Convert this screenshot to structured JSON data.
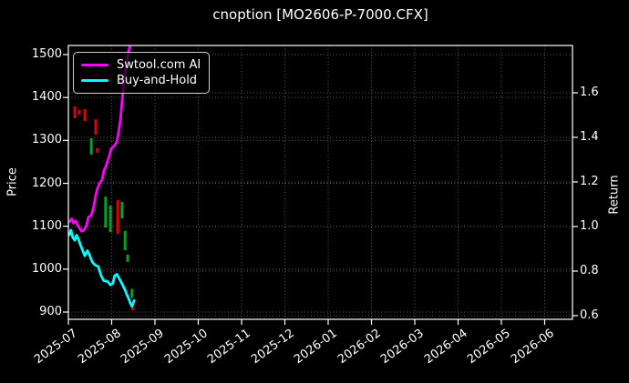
{
  "window": {
    "background": "#000000"
  },
  "chart_data": {
    "type": "mixed_line_candlestick",
    "title": "cnoption [MO2606-P-7000.CFX]",
    "ylabel_left": "Price",
    "ylabel_right": "Return",
    "x_unit": "fractional months from 2025-07",
    "x_ticks": [
      "2025-07",
      "2025-08",
      "2025-09",
      "2025-10",
      "2025-11",
      "2025-12",
      "2026-01",
      "2026-02",
      "2026-03",
      "2026-04",
      "2026-05",
      "2026-06"
    ],
    "y_left": {
      "label": "Price",
      "ticks": [
        900,
        1000,
        1100,
        1200,
        1300,
        1400,
        1500
      ],
      "range_at_spines": [
        883,
        1521
      ]
    },
    "y_right": {
      "label": "Return",
      "ticks": [
        "0.6",
        "0.8",
        "1.0",
        "1.2",
        "1.4",
        "1.6"
      ],
      "range_at_spines": [
        0.58,
        1.81
      ]
    },
    "grid": true,
    "legend": {
      "position": "upper-left",
      "entries": [
        {
          "label": "Swtool.com AI",
          "color": "#ff00ff"
        },
        {
          "label": "Buy-and-Hold",
          "color": "#00ffff"
        }
      ]
    },
    "series": [
      {
        "name": "Swtool.com AI",
        "color": "#ff00ff",
        "axis": "left",
        "points": [
          [
            0.02,
            1110
          ],
          [
            0.08,
            1117
          ],
          [
            0.12,
            1107
          ],
          [
            0.17,
            1112
          ],
          [
            0.21,
            1103
          ],
          [
            0.25,
            1097
          ],
          [
            0.3,
            1088
          ],
          [
            0.36,
            1091
          ],
          [
            0.42,
            1102
          ],
          [
            0.46,
            1121
          ],
          [
            0.53,
            1125
          ],
          [
            0.59,
            1147
          ],
          [
            0.63,
            1171
          ],
          [
            0.67,
            1187
          ],
          [
            0.72,
            1200
          ],
          [
            0.78,
            1208
          ],
          [
            0.82,
            1229
          ],
          [
            0.86,
            1237
          ],
          [
            0.93,
            1259
          ],
          [
            0.99,
            1281
          ],
          [
            1.07,
            1288
          ],
          [
            1.12,
            1297
          ],
          [
            1.16,
            1320
          ],
          [
            1.2,
            1347
          ],
          [
            1.24,
            1390
          ],
          [
            1.28,
            1433
          ],
          [
            1.33,
            1473
          ],
          [
            1.37,
            1499
          ],
          [
            1.43,
            1522
          ]
        ]
      },
      {
        "name": "Buy-and-Hold",
        "color": "#00ffff",
        "axis": "left",
        "points": [
          [
            0.02,
            1080
          ],
          [
            0.06,
            1091
          ],
          [
            0.1,
            1074
          ],
          [
            0.15,
            1067
          ],
          [
            0.19,
            1079
          ],
          [
            0.23,
            1071
          ],
          [
            0.27,
            1059
          ],
          [
            0.32,
            1046
          ],
          [
            0.38,
            1031
          ],
          [
            0.44,
            1043
          ],
          [
            0.48,
            1035
          ],
          [
            0.55,
            1017
          ],
          [
            0.61,
            1010
          ],
          [
            0.69,
            1006
          ],
          [
            0.76,
            984
          ],
          [
            0.82,
            973
          ],
          [
            0.91,
            971
          ],
          [
            0.97,
            963
          ],
          [
            1.03,
            967
          ],
          [
            1.07,
            985
          ],
          [
            1.12,
            988
          ],
          [
            1.18,
            977
          ],
          [
            1.24,
            966
          ],
          [
            1.31,
            951
          ],
          [
            1.35,
            941
          ],
          [
            1.39,
            932
          ],
          [
            1.43,
            921
          ],
          [
            1.47,
            913
          ],
          [
            1.52,
            927
          ]
        ]
      }
    ],
    "candles": [
      {
        "x": 0.15,
        "high": 1379,
        "low": 1352,
        "dir": "down"
      },
      {
        "x": 0.25,
        "high": 1371,
        "low": 1360,
        "dir": "down"
      },
      {
        "x": 0.38,
        "high": 1373,
        "low": 1345,
        "dir": "down"
      },
      {
        "x": 0.53,
        "high": 1305,
        "low": 1267,
        "dir": "up"
      },
      {
        "x": 0.63,
        "high": 1349,
        "low": 1313,
        "dir": "down"
      },
      {
        "x": 0.67,
        "high": 1282,
        "low": 1271,
        "dir": "down"
      },
      {
        "x": 0.86,
        "high": 1169,
        "low": 1097,
        "dir": "up"
      },
      {
        "x": 0.97,
        "high": 1148,
        "low": 1086,
        "dir": "up"
      },
      {
        "x": 1.14,
        "high": 1161,
        "low": 1082,
        "dir": "down"
      },
      {
        "x": 1.24,
        "high": 1157,
        "low": 1118,
        "dir": "up"
      },
      {
        "x": 1.31,
        "high": 1089,
        "low": 1044,
        "dir": "up"
      },
      {
        "x": 1.37,
        "high": 1034,
        "low": 1017,
        "dir": "up"
      },
      {
        "x": 1.47,
        "high": 954,
        "low": 933,
        "dir": "up"
      },
      {
        "x": 1.49,
        "high": 912,
        "low": 904,
        "dir": "down"
      }
    ],
    "colors": {
      "background": "#000000",
      "text": "#ffffff",
      "grid": "#5a5a5a",
      "spine": "#ffffff",
      "candle_up": "#0a9e2a",
      "candle_down": "#e00000"
    }
  }
}
